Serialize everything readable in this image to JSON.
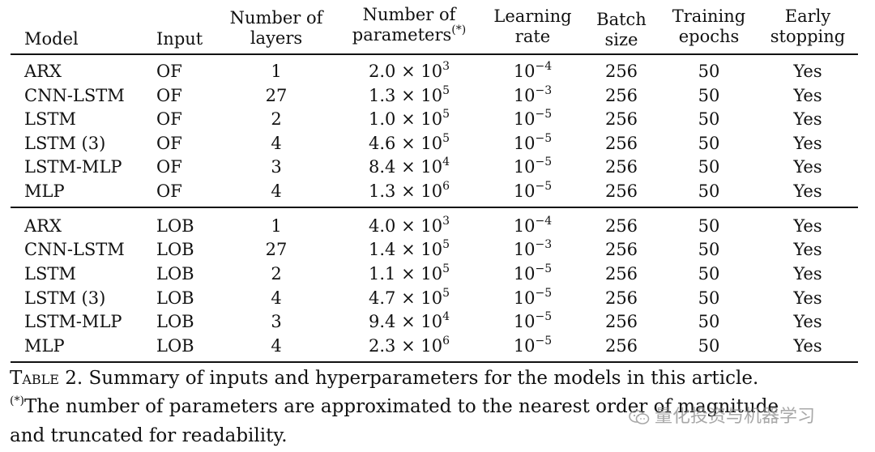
{
  "table": {
    "headers": {
      "model": "Model",
      "input": "Input",
      "layers": [
        "Number of",
        "layers"
      ],
      "params": [
        "Number of",
        "parameters"
      ],
      "params_mark": "(*)",
      "lr": [
        "Learning",
        "rate"
      ],
      "batch": [
        "Batch",
        "size"
      ],
      "epochs": [
        "Training",
        "epochs"
      ],
      "early": [
        "Early",
        "stopping"
      ]
    },
    "rows": [
      {
        "model": "ARX",
        "input": "OF",
        "layers": "1",
        "param_mant": "2.0",
        "param_exp": "3",
        "lr_exp": "−4",
        "batch": "256",
        "epochs": "50",
        "early": "Yes"
      },
      {
        "model": "CNN-LSTM",
        "input": "OF",
        "layers": "27",
        "param_mant": "1.3",
        "param_exp": "5",
        "lr_exp": "−3",
        "batch": "256",
        "epochs": "50",
        "early": "Yes"
      },
      {
        "model": "LSTM",
        "input": "OF",
        "layers": "2",
        "param_mant": "1.0",
        "param_exp": "5",
        "lr_exp": "−5",
        "batch": "256",
        "epochs": "50",
        "early": "Yes"
      },
      {
        "model": "LSTM (3)",
        "input": "OF",
        "layers": "4",
        "param_mant": "4.6",
        "param_exp": "5",
        "lr_exp": "−5",
        "batch": "256",
        "epochs": "50",
        "early": "Yes"
      },
      {
        "model": "LSTM-MLP",
        "input": "OF",
        "layers": "3",
        "param_mant": "8.4",
        "param_exp": "4",
        "lr_exp": "−5",
        "batch": "256",
        "epochs": "50",
        "early": "Yes"
      },
      {
        "model": "MLP",
        "input": "OF",
        "layers": "4",
        "param_mant": "1.3",
        "param_exp": "6",
        "lr_exp": "−5",
        "batch": "256",
        "epochs": "50",
        "early": "Yes"
      },
      {
        "model": "ARX",
        "input": "LOB",
        "layers": "1",
        "param_mant": "4.0",
        "param_exp": "3",
        "lr_exp": "−4",
        "batch": "256",
        "epochs": "50",
        "early": "Yes"
      },
      {
        "model": "CNN-LSTM",
        "input": "LOB",
        "layers": "27",
        "param_mant": "1.4",
        "param_exp": "5",
        "lr_exp": "−3",
        "batch": "256",
        "epochs": "50",
        "early": "Yes"
      },
      {
        "model": "LSTM",
        "input": "LOB",
        "layers": "2",
        "param_mant": "1.1",
        "param_exp": "5",
        "lr_exp": "−5",
        "batch": "256",
        "epochs": "50",
        "early": "Yes"
      },
      {
        "model": "LSTM (3)",
        "input": "LOB",
        "layers": "4",
        "param_mant": "4.7",
        "param_exp": "5",
        "lr_exp": "−5",
        "batch": "256",
        "epochs": "50",
        "early": "Yes"
      },
      {
        "model": "LSTM-MLP",
        "input": "LOB",
        "layers": "3",
        "param_mant": "9.4",
        "param_exp": "4",
        "lr_exp": "−5",
        "batch": "256",
        "epochs": "50",
        "early": "Yes"
      },
      {
        "model": "MLP",
        "input": "LOB",
        "layers": "4",
        "param_mant": "2.3",
        "param_exp": "6",
        "lr_exp": "−5",
        "batch": "256",
        "epochs": "50",
        "early": "Yes"
      }
    ]
  },
  "caption": {
    "label": "Table 2.",
    "line1": "Summary of inputs and hyperparameters for the models in this article.",
    "mark": "(*)",
    "line2": "The number of parameters are approximated to the nearest order of magnitude",
    "line3": "and truncated for readability."
  },
  "watermark": {
    "text": "量化投资与机器学习",
    "icon": "wechat-icon"
  }
}
